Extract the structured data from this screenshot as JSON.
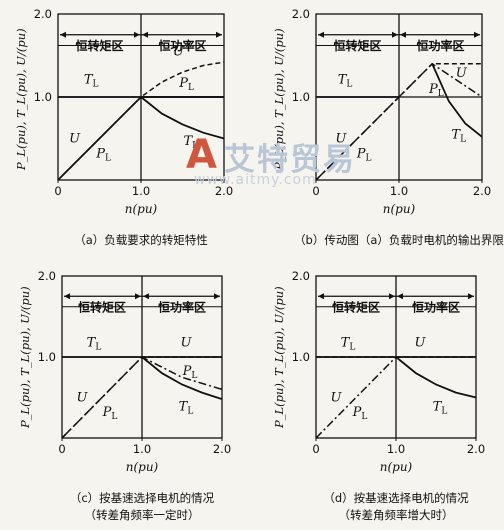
{
  "chart_data": [
    {
      "type": "line",
      "caption": "（a）负载要求的转矩特性",
      "ylabel": "P_L(pu), T_L(pu), U/(pu)",
      "xlabel": "n(pu)",
      "x_ticks": [
        "0",
        "1.0",
        "2.0"
      ],
      "y_ticks": [
        "2.0",
        "1.0"
      ],
      "xlim": [
        0,
        2.0
      ],
      "ylim": [
        0,
        2.0
      ],
      "region_labels": [
        "恒转矩区",
        "恒功率区"
      ],
      "series": [
        {
          "name": "U",
          "style": "dashed",
          "x": [
            0,
            1.0,
            1.25,
            1.5,
            1.75,
            2.0
          ],
          "y": [
            0,
            1.0,
            1.18,
            1.3,
            1.38,
            1.42
          ]
        },
        {
          "name": "P_L",
          "style": "solid",
          "x": [
            0,
            1.0,
            2.0
          ],
          "y": [
            0,
            1.0,
            1.0
          ]
        },
        {
          "name": "T_L",
          "style": "solid",
          "x": [
            0,
            1.0,
            2.0
          ],
          "y": [
            1.0,
            1.0,
            1.0
          ]
        },
        {
          "name": "T_L",
          "style": "solid",
          "x": [
            1.0,
            1.25,
            1.5,
            1.75,
            2.0
          ],
          "y": [
            1.0,
            0.8,
            0.67,
            0.57,
            0.5
          ]
        }
      ],
      "labels": [
        {
          "text": "U",
          "x": 1.45,
          "y": 1.5
        },
        {
          "text": "P_L",
          "x": 1.55,
          "y": 1.12
        },
        {
          "text": "T_L",
          "x": 0.4,
          "y": 1.16
        },
        {
          "text": "U",
          "x": 0.2,
          "y": 0.45
        },
        {
          "text": "P_L",
          "x": 0.55,
          "y": 0.27
        },
        {
          "text": "T_L",
          "x": 1.6,
          "y": 0.42
        }
      ]
    },
    {
      "type": "line",
      "caption": "（b）传动图（a）负载时电机的输出界限",
      "ylabel": "P_L(pu), T_L(pu), U/(pu)",
      "xlabel": "n(pu)",
      "x_ticks": [
        "0",
        "1.0",
        "2.0"
      ],
      "y_ticks": [
        "2.0",
        "1.0"
      ],
      "xlim": [
        0,
        2.0
      ],
      "ylim": [
        0,
        2.0
      ],
      "region_labels": [
        "恒转矩区",
        "恒功率区"
      ],
      "series": [
        {
          "name": "U",
          "style": "dashed",
          "x": [
            0,
            1.4,
            2.0
          ],
          "y": [
            0,
            1.4,
            1.4
          ]
        },
        {
          "name": "P_L",
          "style": "dashdot",
          "x": [
            0,
            1.4,
            2.0
          ],
          "y": [
            0,
            1.4,
            1.0
          ]
        },
        {
          "name": "T_L",
          "style": "solid",
          "x": [
            0,
            1.0
          ],
          "y": [
            1.0,
            1.0
          ]
        },
        {
          "name": "T_L",
          "style": "solid",
          "x": [
            1.4,
            1.6,
            1.8,
            2.0
          ],
          "y": [
            1.4,
            0.95,
            0.68,
            0.52
          ]
        }
      ],
      "labels": [
        {
          "text": "U",
          "x": 1.75,
          "y": 1.24
        },
        {
          "text": "P_L",
          "x": 1.45,
          "y": 1.05
        },
        {
          "text": "T_L",
          "x": 0.35,
          "y": 1.16
        },
        {
          "text": "U",
          "x": 0.3,
          "y": 0.45
        },
        {
          "text": "P_L",
          "x": 0.58,
          "y": 0.27
        },
        {
          "text": "T_L",
          "x": 1.72,
          "y": 0.5
        }
      ]
    },
    {
      "type": "line",
      "caption": "（c）按基速选择电机的情况",
      "caption_line2": "（转差角频率一定时）",
      "ylabel": "P_L(pu), T_L(pu), U/(pu)",
      "xlabel": "n(pu)",
      "x_ticks": [
        "0",
        "1.0",
        "2.0"
      ],
      "y_ticks": [
        "2.0",
        "1.0"
      ],
      "xlim": [
        0,
        2.0
      ],
      "ylim": [
        0,
        2.0
      ],
      "region_labels": [
        "恒转矩区",
        "恒功率区"
      ],
      "series": [
        {
          "name": "U",
          "style": "dashed",
          "x": [
            0,
            1.0,
            2.0
          ],
          "y": [
            0,
            1.0,
            1.0
          ]
        },
        {
          "name": "P_L",
          "style": "dashdot",
          "x": [
            0,
            1.0,
            1.5,
            2.0
          ],
          "y": [
            0,
            1.0,
            0.75,
            0.6
          ]
        },
        {
          "name": "T_L",
          "style": "solid",
          "x": [
            0,
            1.0,
            2.0
          ],
          "y": [
            1.0,
            1.0,
            1.0
          ]
        },
        {
          "name": "T_L",
          "style": "solid",
          "x": [
            1.0,
            1.25,
            1.5,
            1.75,
            2.0
          ],
          "y": [
            1.0,
            0.8,
            0.66,
            0.56,
            0.48
          ]
        }
      ],
      "labels": [
        {
          "text": "T_L",
          "x": 0.4,
          "y": 1.13
        },
        {
          "text": "U",
          "x": 1.55,
          "y": 1.13
        },
        {
          "text": "P_L",
          "x": 1.6,
          "y": 0.78
        },
        {
          "text": "U",
          "x": 0.25,
          "y": 0.45
        },
        {
          "text": "P_L",
          "x": 0.6,
          "y": 0.27
        },
        {
          "text": "T_L",
          "x": 1.55,
          "y": 0.34
        }
      ]
    },
    {
      "type": "line",
      "caption": "（d）按基速选择电机的情况",
      "caption_line2": "（转差角频率增大时）",
      "ylabel": "P_L(pu), T_L(pu), U/(pu)",
      "xlabel": "n(pu)",
      "x_ticks": [
        "0",
        "1.0",
        "2.0"
      ],
      "y_ticks": [
        "2.0",
        "1.0"
      ],
      "xlim": [
        0,
        2.0
      ],
      "ylim": [
        0,
        2.0
      ],
      "region_labels": [
        "恒转矩区",
        "恒功率区"
      ],
      "series": [
        {
          "name": "U",
          "style": "dashed",
          "x": [
            0,
            1.0,
            2.0
          ],
          "y": [
            1.0,
            1.0,
            1.0
          ]
        },
        {
          "name": "P_L",
          "style": "dashdot",
          "x": [
            0,
            1.0
          ],
          "y": [
            0,
            1.0
          ]
        },
        {
          "name": "T_L",
          "style": "solid",
          "x": [
            0,
            2.0
          ],
          "y": [
            1.0,
            1.0
          ]
        },
        {
          "name": "T_L",
          "style": "solid",
          "x": [
            1.0,
            1.25,
            1.5,
            1.75,
            2.0
          ],
          "y": [
            1.0,
            0.8,
            0.66,
            0.56,
            0.5
          ]
        }
      ],
      "labels": [
        {
          "text": "T_L",
          "x": 0.4,
          "y": 1.13
        },
        {
          "text": "U",
          "x": 1.3,
          "y": 1.13
        },
        {
          "text": "U",
          "x": 0.25,
          "y": 0.45
        },
        {
          "text": "P_L",
          "x": 0.55,
          "y": 0.27
        },
        {
          "text": "T_L",
          "x": 1.55,
          "y": 0.34
        }
      ]
    }
  ],
  "watermark": {
    "text": "艾特贸易",
    "url": "www.aitmy.com",
    "logo": "A"
  }
}
